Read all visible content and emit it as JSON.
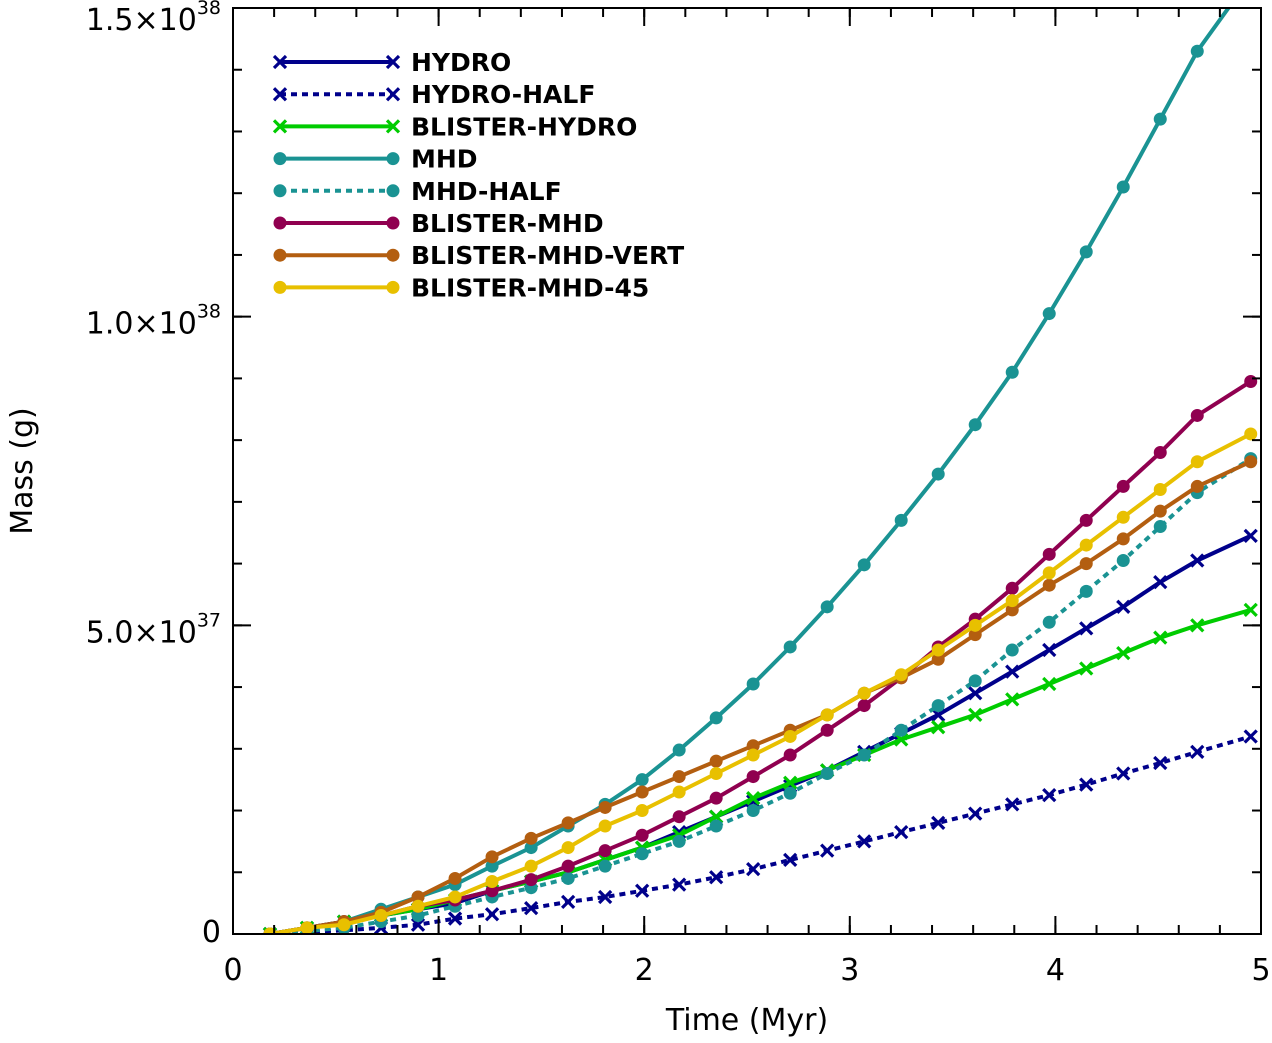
{
  "chart_data": {
    "type": "line",
    "title": "",
    "xlabel": "Time (Myr)",
    "ylabel": "Mass (g)",
    "xlim": [
      0,
      5
    ],
    "ylim": [
      0,
      1.5e+38
    ],
    "grid": false,
    "legend_position": "top-left",
    "x_ticks": [
      {
        "value": 0,
        "label": "0"
      },
      {
        "value": 1,
        "label": "1"
      },
      {
        "value": 2,
        "label": "2"
      },
      {
        "value": 3,
        "label": "3"
      },
      {
        "value": 4,
        "label": "4"
      },
      {
        "value": 5,
        "label": "5"
      }
    ],
    "y_ticks": [
      {
        "value": 0,
        "mantissa": "0",
        "exponent": ""
      },
      {
        "value": 5e+37,
        "mantissa": "5.0×10",
        "exponent": "37"
      },
      {
        "value": 1e+38,
        "mantissa": "1.0×10",
        "exponent": "38"
      },
      {
        "value": 1.5e+38,
        "mantissa": "1.5×10",
        "exponent": "38"
      }
    ],
    "x": [
      0.18,
      0.36,
      0.54,
      0.72,
      0.9,
      1.08,
      1.26,
      1.45,
      1.63,
      1.81,
      1.99,
      2.17,
      2.35,
      2.53,
      2.71,
      2.89,
      3.07,
      3.25,
      3.43,
      3.61,
      3.79,
      3.97,
      4.15,
      4.33,
      4.51,
      4.69,
      4.87,
      4.95
    ],
    "series": [
      {
        "name": "HYDRO",
        "color": "#00008b",
        "style": "solid",
        "marker": "x",
        "values": [
          0.0,
          1e+36,
          2e+36,
          3e+36,
          4e+36,
          5e+36,
          7e+36,
          8.5e+36,
          1e+37,
          1.2e+37,
          1.4e+37,
          1.65e+37,
          1.9e+37,
          2.15e+37,
          2.4e+37,
          2.65e+37,
          2.95e+37,
          3.25e+37,
          3.55e+37,
          3.9e+37,
          4.25e+37,
          4.6e+37,
          4.95e+37,
          5.3e+37,
          5.7e+37,
          6.05e+37,
          null,
          6.45e+37
        ]
      },
      {
        "name": "HYDRO-HALF",
        "color": "#00008b",
        "style": "dotted",
        "marker": "x",
        "values": [
          0.0,
          3e+35,
          6e+35,
          1e+36,
          1.5e+36,
          2.5e+36,
          3.2e+36,
          4.2e+36,
          5.2e+36,
          6e+36,
          7e+36,
          8e+36,
          9.2e+36,
          1.05e+37,
          1.2e+37,
          1.35e+37,
          1.5e+37,
          1.65e+37,
          1.8e+37,
          1.95e+37,
          2.1e+37,
          2.25e+37,
          2.42e+37,
          2.6e+37,
          2.77e+37,
          2.95e+37,
          null,
          3.2e+37
        ]
      },
      {
        "name": "BLISTER-HYDRO",
        "color": "#00cc00",
        "style": "solid",
        "marker": "x",
        "values": [
          0.0,
          1e+36,
          2e+36,
          3e+36,
          4e+36,
          5.5e+36,
          7e+36,
          8.5e+36,
          1e+37,
          1.2e+37,
          1.4e+37,
          1.6e+37,
          1.9e+37,
          2.2e+37,
          2.45e+37,
          2.65e+37,
          2.9e+37,
          3.15e+37,
          3.35e+37,
          3.55e+37,
          3.8e+37,
          4.05e+37,
          4.3e+37,
          4.55e+37,
          4.8e+37,
          5e+37,
          null,
          5.25e+37
        ]
      },
      {
        "name": "MHD",
        "color": "#1a9393",
        "style": "solid",
        "marker": "dot",
        "values": [
          0.0,
          1e+36,
          2e+36,
          4e+36,
          6e+36,
          8e+36,
          1.1e+37,
          1.4e+37,
          1.75e+37,
          2.1e+37,
          2.5e+37,
          2.98e+37,
          3.5e+37,
          4.05e+37,
          4.65e+37,
          5.3e+37,
          5.98e+37,
          6.7e+37,
          7.45e+37,
          8.25e+37,
          9.1e+37,
          1.005e+38,
          1.105e+38,
          1.21e+38,
          1.32e+38,
          1.43e+38,
          null,
          null
        ]
      },
      {
        "name": "MHD-HALF",
        "color": "#1a9393",
        "style": "dotted",
        "marker": "dot",
        "values": [
          0.0,
          5e+35,
          1e+36,
          2e+36,
          3e+36,
          4.5e+36,
          6e+36,
          7.5e+36,
          9e+36,
          1.1e+37,
          1.3e+37,
          1.5e+37,
          1.75e+37,
          2e+37,
          2.28e+37,
          2.6e+37,
          2.9e+37,
          3.3e+37,
          3.7e+37,
          4.1e+37,
          4.6e+37,
          5.05e+37,
          5.55e+37,
          6.05e+37,
          6.6e+37,
          7.15e+37,
          null,
          7.7e+37
        ]
      },
      {
        "name": "BLISTER-MHD",
        "color": "#900050",
        "style": "solid",
        "marker": "dot",
        "values": [
          0.0,
          1e+36,
          2e+36,
          3e+36,
          4.5e+36,
          5.5e+36,
          7e+36,
          8.8e+36,
          1.1e+37,
          1.35e+37,
          1.6e+37,
          1.9e+37,
          2.2e+37,
          2.55e+37,
          2.9e+37,
          3.3e+37,
          3.7e+37,
          4.15e+37,
          4.65e+37,
          5.1e+37,
          5.6e+37,
          6.15e+37,
          6.7e+37,
          7.25e+37,
          7.8e+37,
          8.4e+37,
          null,
          8.95e+37
        ]
      },
      {
        "name": "BLISTER-MHD-VERT",
        "color": "#b35e10",
        "style": "solid",
        "marker": "dot",
        "values": [
          0.0,
          1e+36,
          2e+36,
          3.5e+36,
          6e+36,
          9e+36,
          1.25e+37,
          1.55e+37,
          1.8e+37,
          2.05e+37,
          2.3e+37,
          2.55e+37,
          2.8e+37,
          3.05e+37,
          3.3e+37,
          3.55e+37,
          3.9e+37,
          4.15e+37,
          4.45e+37,
          4.85e+37,
          5.25e+37,
          5.65e+37,
          6e+37,
          6.4e+37,
          6.85e+37,
          7.25e+37,
          null,
          7.65e+37
        ]
      },
      {
        "name": "BLISTER-MHD-45",
        "color": "#e8c000",
        "style": "solid",
        "marker": "dot",
        "values": [
          0.0,
          1e+36,
          1.5e+36,
          3e+36,
          4.5e+36,
          6e+36,
          8.5e+36,
          1.1e+37,
          1.4e+37,
          1.75e+37,
          2e+37,
          2.3e+37,
          2.6e+37,
          2.9e+37,
          3.2e+37,
          3.55e+37,
          3.9e+37,
          4.2e+37,
          4.6e+37,
          5e+37,
          5.4e+37,
          5.85e+37,
          6.3e+37,
          6.75e+37,
          7.2e+37,
          7.65e+37,
          null,
          8.1e+37
        ]
      }
    ]
  }
}
